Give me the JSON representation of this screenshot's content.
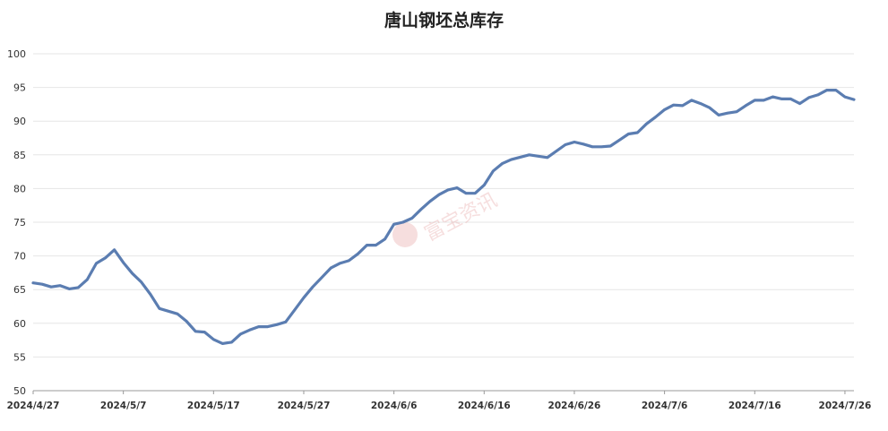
{
  "chart_data": {
    "type": "line",
    "title": "唐山钢坯总库存",
    "xlabel": "",
    "ylabel": "",
    "ylim": [
      50,
      100
    ],
    "yticks": [
      50,
      55,
      60,
      65,
      70,
      75,
      80,
      85,
      90,
      95,
      100
    ],
    "x_tick_labels": [
      "2024/4/27",
      "2024/5/7",
      "2024/5/17",
      "2024/5/27",
      "2024/6/6",
      "2024/6/16",
      "2024/6/26",
      "2024/7/6",
      "2024/7/16",
      "2024/7/26"
    ],
    "x_range": [
      "2024-04-27",
      "2024-07-27"
    ],
    "grid": true,
    "legend": "none",
    "watermark": "富宝资讯",
    "series": [
      {
        "color": "#5b7db1",
        "points": [
          [
            "2024-04-27",
            66.0
          ],
          [
            "2024-04-28",
            65.8
          ],
          [
            "2024-04-29",
            65.4
          ],
          [
            "2024-04-30",
            65.6
          ],
          [
            "2024-05-01",
            65.1
          ],
          [
            "2024-05-02",
            65.3
          ],
          [
            "2024-05-03",
            66.5
          ],
          [
            "2024-05-04",
            68.9
          ],
          [
            "2024-05-05",
            69.7
          ],
          [
            "2024-05-06",
            70.9
          ],
          [
            "2024-05-07",
            69.0
          ],
          [
            "2024-05-08",
            67.4
          ],
          [
            "2024-05-09",
            66.1
          ],
          [
            "2024-05-10",
            64.3
          ],
          [
            "2024-05-11",
            62.2
          ],
          [
            "2024-05-12",
            61.8
          ],
          [
            "2024-05-13",
            61.4
          ],
          [
            "2024-05-14",
            60.3
          ],
          [
            "2024-05-15",
            58.8
          ],
          [
            "2024-05-16",
            58.7
          ],
          [
            "2024-05-17",
            57.6
          ],
          [
            "2024-05-18",
            57.0
          ],
          [
            "2024-05-19",
            57.2
          ],
          [
            "2024-05-20",
            58.4
          ],
          [
            "2024-05-21",
            59.0
          ],
          [
            "2024-05-22",
            59.5
          ],
          [
            "2024-05-23",
            59.5
          ],
          [
            "2024-05-24",
            59.8
          ],
          [
            "2024-05-25",
            60.2
          ],
          [
            "2024-05-26",
            62.0
          ],
          [
            "2024-05-27",
            63.8
          ],
          [
            "2024-05-28",
            65.4
          ],
          [
            "2024-05-29",
            66.8
          ],
          [
            "2024-05-30",
            68.2
          ],
          [
            "2024-05-31",
            68.9
          ],
          [
            "2024-06-01",
            69.3
          ],
          [
            "2024-06-02",
            70.3
          ],
          [
            "2024-06-03",
            71.6
          ],
          [
            "2024-06-04",
            71.6
          ],
          [
            "2024-06-05",
            72.5
          ],
          [
            "2024-06-06",
            74.7
          ],
          [
            "2024-06-07",
            75.0
          ],
          [
            "2024-06-08",
            75.6
          ],
          [
            "2024-06-09",
            76.9
          ],
          [
            "2024-06-10",
            78.1
          ],
          [
            "2024-06-11",
            79.1
          ],
          [
            "2024-06-12",
            79.8
          ],
          [
            "2024-06-13",
            80.1
          ],
          [
            "2024-06-14",
            79.3
          ],
          [
            "2024-06-15",
            79.3
          ],
          [
            "2024-06-16",
            80.5
          ],
          [
            "2024-06-17",
            82.6
          ],
          [
            "2024-06-18",
            83.7
          ],
          [
            "2024-06-19",
            84.3
          ],
          [
            "2024-06-21",
            85.0
          ],
          [
            "2024-06-23",
            84.6
          ],
          [
            "2024-06-25",
            86.5
          ],
          [
            "2024-06-26",
            86.9
          ],
          [
            "2024-06-27",
            86.6
          ],
          [
            "2024-06-28",
            86.2
          ],
          [
            "2024-06-29",
            86.2
          ],
          [
            "2024-06-30",
            86.3
          ],
          [
            "2024-07-01",
            87.2
          ],
          [
            "2024-07-02",
            88.1
          ],
          [
            "2024-07-03",
            88.3
          ],
          [
            "2024-07-04",
            89.6
          ],
          [
            "2024-07-05",
            90.6
          ],
          [
            "2024-07-06",
            91.7
          ],
          [
            "2024-07-07",
            92.4
          ],
          [
            "2024-07-08",
            92.3
          ],
          [
            "2024-07-09",
            93.1
          ],
          [
            "2024-07-10",
            92.6
          ],
          [
            "2024-07-11",
            92.0
          ],
          [
            "2024-07-12",
            90.9
          ],
          [
            "2024-07-13",
            91.2
          ],
          [
            "2024-07-14",
            91.4
          ],
          [
            "2024-07-15",
            92.3
          ],
          [
            "2024-07-16",
            93.1
          ],
          [
            "2024-07-17",
            93.1
          ],
          [
            "2024-07-18",
            93.6
          ],
          [
            "2024-07-19",
            93.3
          ],
          [
            "2024-07-20",
            93.3
          ],
          [
            "2024-07-21",
            92.6
          ],
          [
            "2024-07-22",
            93.5
          ],
          [
            "2024-07-23",
            93.9
          ],
          [
            "2024-07-24",
            94.6
          ],
          [
            "2024-07-25",
            94.6
          ],
          [
            "2024-07-26",
            93.6
          ],
          [
            "2024-07-27",
            93.2
          ]
        ]
      }
    ]
  }
}
